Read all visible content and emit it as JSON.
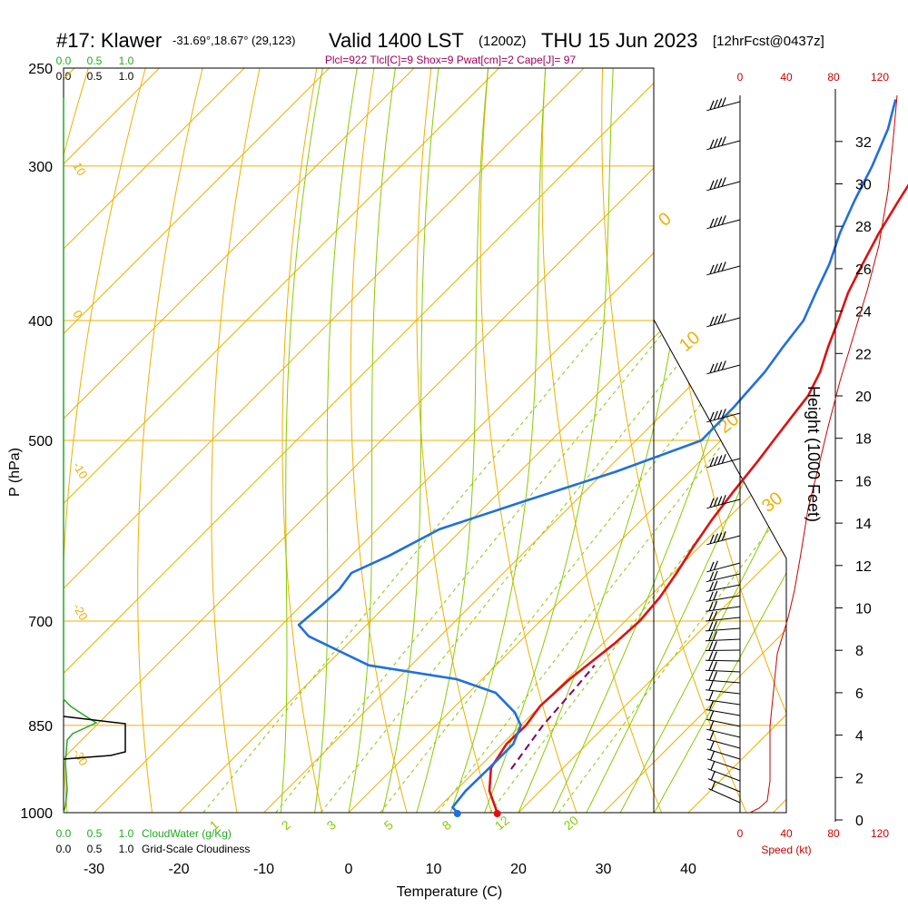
{
  "header": {
    "station": "#17: Klawer",
    "coords": "-31.69°,18.67° (29,123)",
    "valid": "Valid 1400 LST",
    "utc": "(1200Z)",
    "date": "THU 15 Jun 2023",
    "forecast": "[12hrFcst@0437z]"
  },
  "params": "Plcl=922 Tlcl[C]=9 Shox=9 Pwat[cm]=2 Cape[J]= 97",
  "cloud_water_ticks": [
    "0.0",
    "0.5",
    "1.0"
  ],
  "cloudiness_ticks": [
    "0.0",
    "0.5",
    "1.0"
  ],
  "cloud_water_label": "CloudWater (g/Kg)",
  "cloudiness_label": "Grid-Scale Cloudiness",
  "colors": {
    "temperature": "#e01010",
    "dewpoint": "#1f6fe0",
    "parcel": "#800060",
    "isotherm": "#f0b000",
    "dry_adiabat": "#f0b000",
    "moist_adiabat": "#88cc00",
    "mixing_ratio": "#88cc00",
    "cloud_water": "#22aa22",
    "wind_speed": "#cc0000"
  },
  "chart_data": {
    "type": "line",
    "title": "",
    "xlabel": "Temperature (C)",
    "ylabel": "P (hPa)",
    "y2label": "Height (1000 Feet)",
    "x_ticks": [
      -30,
      -20,
      -10,
      0,
      10,
      20,
      30,
      40
    ],
    "p_ticks": [
      250,
      300,
      400,
      500,
      700,
      850,
      1000
    ],
    "height_ticks": [
      0,
      2,
      4,
      6,
      8,
      10,
      12,
      14,
      16,
      18,
      20,
      22,
      24,
      26,
      28,
      30,
      32
    ],
    "xlim": [
      -35,
      36
    ],
    "plim": [
      1000,
      250
    ],
    "dry_adiabat_labels": [
      "10",
      "0",
      "-10",
      "-20",
      "-30"
    ],
    "moist_adiabat_labels": [
      "0",
      "10",
      "20",
      "30"
    ],
    "mixing_ratio_labels": [
      "1",
      "2",
      "3",
      "5",
      "8",
      "12",
      "20"
    ],
    "wind_speed_ticks": [
      "0",
      "40",
      "80",
      "120"
    ],
    "wind_speed_label": "Speed (kt)",
    "series": [
      {
        "name": "Temperature",
        "points": [
          [
            17.5,
            1000
          ],
          [
            14,
            960
          ],
          [
            11.5,
            920
          ],
          [
            10.5,
            880
          ],
          [
            10.6,
            850
          ],
          [
            10.0,
            820
          ],
          [
            10.3,
            780
          ],
          [
            11.4,
            730
          ],
          [
            11.7,
            700
          ],
          [
            11.3,
            670
          ],
          [
            10.4,
            640
          ],
          [
            9.3,
            610
          ],
          [
            8.3,
            580
          ],
          [
            7.5,
            550
          ],
          [
            6.8,
            520
          ],
          [
            6.2,
            500
          ],
          [
            5.6,
            480
          ],
          [
            5.0,
            460
          ],
          [
            3.6,
            440
          ],
          [
            1.6,
            420
          ],
          [
            -0.3,
            400
          ],
          [
            -2.4,
            380
          ],
          [
            -4.1,
            360
          ],
          [
            -5.8,
            340
          ],
          [
            -7.3,
            320
          ],
          [
            -8.8,
            300
          ],
          [
            -10.6,
            280
          ],
          [
            -12.5,
            265
          ]
        ]
      },
      {
        "name": "Dewpoint",
        "points": [
          [
            12.8,
            1000
          ],
          [
            11.6,
            990
          ],
          [
            11.2,
            960
          ],
          [
            11.3,
            920
          ],
          [
            11.3,
            880
          ],
          [
            10.0,
            850
          ],
          [
            7.8,
            830
          ],
          [
            3.2,
            800
          ],
          [
            -3,
            780
          ],
          [
            -15,
            760
          ],
          [
            -25.5,
            720
          ],
          [
            -28.0,
            705
          ],
          [
            -27.6,
            680
          ],
          [
            -27.4,
            660
          ],
          [
            -27.9,
            640
          ],
          [
            -25.5,
            620
          ],
          [
            -22.7,
            590
          ],
          [
            -16.0,
            560
          ],
          [
            -8.7,
            530
          ],
          [
            -2.3,
            500
          ],
          [
            -2.4,
            470
          ],
          [
            -2.9,
            440
          ],
          [
            -3.7,
            420
          ],
          [
            -4.4,
            400
          ],
          [
            -6.2,
            380
          ],
          [
            -8.0,
            360
          ],
          [
            -10.4,
            340
          ],
          [
            -12.5,
            320
          ],
          [
            -14.5,
            300
          ],
          [
            -17.0,
            280
          ],
          [
            -19.6,
            265
          ]
        ]
      },
      {
        "name": "Parcel",
        "points": [
          [
            14,
            922
          ],
          [
            13.2,
            880
          ],
          [
            12.6,
            850
          ],
          [
            12.3,
            820
          ],
          [
            12.0,
            790
          ],
          [
            11.6,
            760
          ]
        ]
      }
    ],
    "surface_temperature": 17.5,
    "surface_dewpoint": 12.8
  }
}
